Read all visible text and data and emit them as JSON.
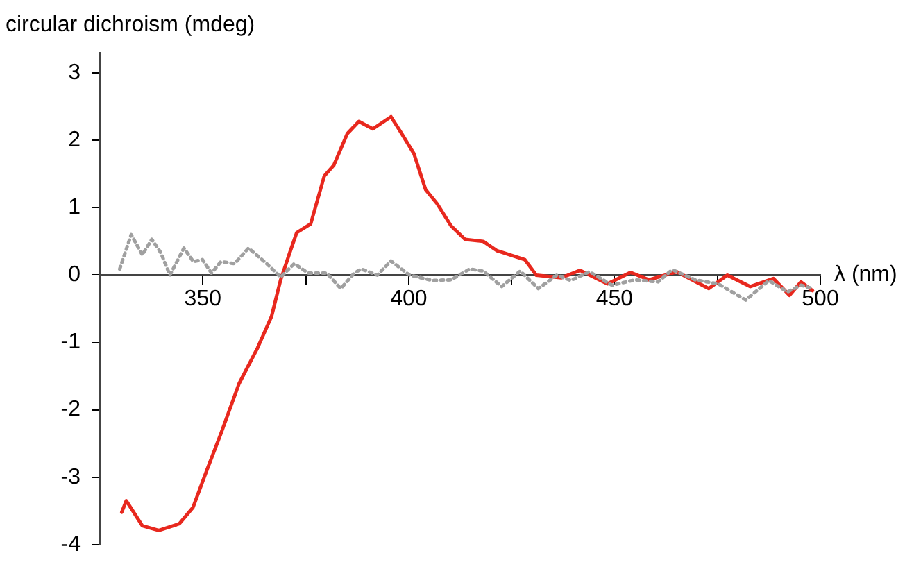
{
  "chart_data": {
    "type": "line",
    "ylabel": "circular dichroism (mdeg)",
    "xlabel": "λ (nm)",
    "xlim": [
      325,
      500
    ],
    "xticks": [
      350,
      {
        "value": 375,
        "label": null
      },
      400,
      {
        "value": 425,
        "label": null
      },
      450,
      {
        "value": 475,
        "label": null
      },
      500
    ],
    "ylim": [
      -4,
      3.3
    ],
    "yticks": [
      -4,
      -3,
      -2,
      -1,
      0,
      1,
      2,
      3
    ],
    "grid": false,
    "legend": false,
    "marker": "none",
    "series": [
      {
        "color": "#a0a0a0",
        "line_style": "dotted",
        "x": [
          329.8,
          332.6,
          335.3,
          337.6,
          339.8,
          342,
          345.4,
          347.7,
          349.9,
          352.1,
          354.4,
          357.7,
          361.1,
          365.5,
          368.9,
          372.2,
          375.6,
          380.1,
          383.5,
          386.8,
          388.5,
          392.4,
          395.7,
          400.2,
          405.8,
          410.3,
          414.8,
          418.1,
          422.6,
          427.1,
          431.5,
          436,
          439.4,
          443.9,
          449.4,
          455,
          460.6,
          464,
          469.6,
          475.2,
          481.9,
          487.5,
          492,
          495.3,
          498.1
        ],
        "values": [
          0.09,
          0.6,
          0.3,
          0.53,
          0.33,
          0,
          0.4,
          0.2,
          0.23,
          0.03,
          0.2,
          0.17,
          0.4,
          0.17,
          -0.03,
          0.17,
          0.03,
          0.03,
          -0.2,
          0.03,
          0.09,
          0,
          0.21,
          0,
          -0.08,
          -0.07,
          0.09,
          0.06,
          -0.17,
          0.06,
          -0.2,
          0,
          -0.08,
          0.05,
          -0.15,
          -0.07,
          -0.1,
          0.08,
          -0.07,
          -0.13,
          -0.37,
          -0.08,
          -0.25,
          -0.15,
          -0.2
        ]
      },
      {
        "color": "#e8281e",
        "line_style": "solid",
        "x": [
          330.3,
          331.4,
          335.3,
          339.3,
          344.3,
          347.6,
          351,
          354.4,
          358.8,
          363.3,
          366.7,
          368.9,
          371.1,
          372.8,
          376.2,
          379.5,
          381.8,
          385.1,
          387.9,
          391.3,
          395.7,
          398,
          401.3,
          404.1,
          406.9,
          410.3,
          413.7,
          418.1,
          421.5,
          428.2,
          431,
          437.1,
          441.6,
          448.3,
          453.9,
          458.4,
          465.1,
          472.9,
          477.4,
          483,
          488.6,
          492.5,
          495.3,
          498.1
        ],
        "values": [
          -3.52,
          -3.35,
          -3.72,
          -3.79,
          -3.69,
          -3.45,
          -2.89,
          -2.35,
          -1.61,
          -1.08,
          -0.61,
          -0.07,
          0.33,
          0.63,
          0.76,
          1.47,
          1.63,
          2.1,
          2.28,
          2.17,
          2.35,
          2.13,
          1.8,
          1.27,
          1.06,
          0.73,
          0.53,
          0.5,
          0.36,
          0.23,
          0,
          -0.04,
          0.07,
          -0.13,
          0.04,
          -0.07,
          0.05,
          -0.2,
          0,
          -0.17,
          -0.05,
          -0.3,
          -0.1,
          -0.23
        ]
      }
    ]
  }
}
